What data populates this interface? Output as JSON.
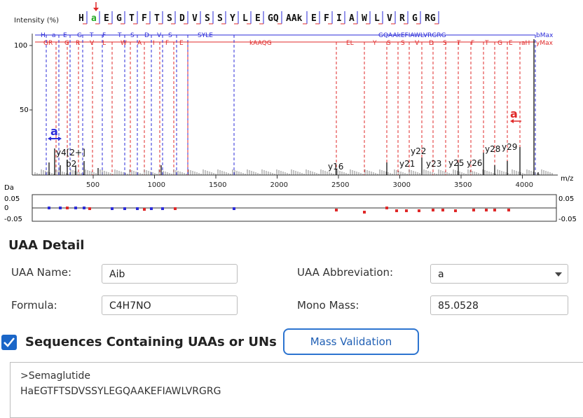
{
  "plot": {
    "y_label": "Intensity (%)",
    "x_unit": "m/z",
    "da_label": "Da",
    "y_ticks": [
      "100",
      "50"
    ],
    "x_ticks": [
      "500",
      "1000",
      "1500",
      "2000",
      "2500",
      "3000",
      "3500",
      "4000"
    ],
    "err_ticks_left": [
      "0.05",
      "0",
      "-0.05"
    ],
    "err_ticks_right": [
      "0.05",
      "-0.05"
    ],
    "sequence": [
      "H",
      "a",
      "E",
      "G",
      "T",
      "F",
      "T",
      "S",
      "D",
      "V",
      "S",
      "S",
      "Y",
      "L",
      "E",
      "GQ",
      "AAk",
      "E",
      "F",
      "I",
      "A",
      "W",
      "L",
      "V",
      "R",
      "G",
      "RG"
    ],
    "b_row": [
      "H",
      "a",
      "E",
      "G",
      "T",
      "F",
      "T",
      "S",
      "D",
      "V",
      "S",
      "SYLE",
      "GQAAkEFIAWLVRGRG"
    ],
    "y_row": [
      "GR",
      "G",
      "R",
      "V",
      "L",
      "W",
      "A",
      "I",
      "F",
      "E",
      "kAAQG",
      "EL",
      "Y",
      "S",
      "S",
      "V",
      "D",
      "S",
      "T",
      "F",
      "T",
      "G",
      "E",
      "aH"
    ],
    "b_end": "bMax",
    "y_end": "yMax",
    "annot": [
      "a",
      "a"
    ],
    "peak_labels": [
      "y4[2+]",
      "b2",
      "y16",
      "y21",
      "y22",
      "y23",
      "y25",
      "y26",
      "y28",
      "y29"
    ],
    "colors": {
      "b": "#2b2bd9",
      "y": "#e02828",
      "mod": "#22aa22"
    }
  },
  "detail": {
    "title": "UAA Detail",
    "name_label": "UAA Name:",
    "name_value": "Aib",
    "abbr_label": "UAA Abbreviation:",
    "abbr_value": "a",
    "formula_label": "Formula:",
    "formula_value": "C4H7NO",
    "mass_label": "Mono Mass:",
    "mass_value": "85.0528"
  },
  "sequences": {
    "checkbox_label": "Sequences Containing UAAs or UNs",
    "checked": true,
    "button_label": "Mass Validation",
    "lines": [
      ">Semaglutide",
      "HaEGTFTSDVSSYLEGQAAKEFIAWLVRGRG"
    ]
  }
}
